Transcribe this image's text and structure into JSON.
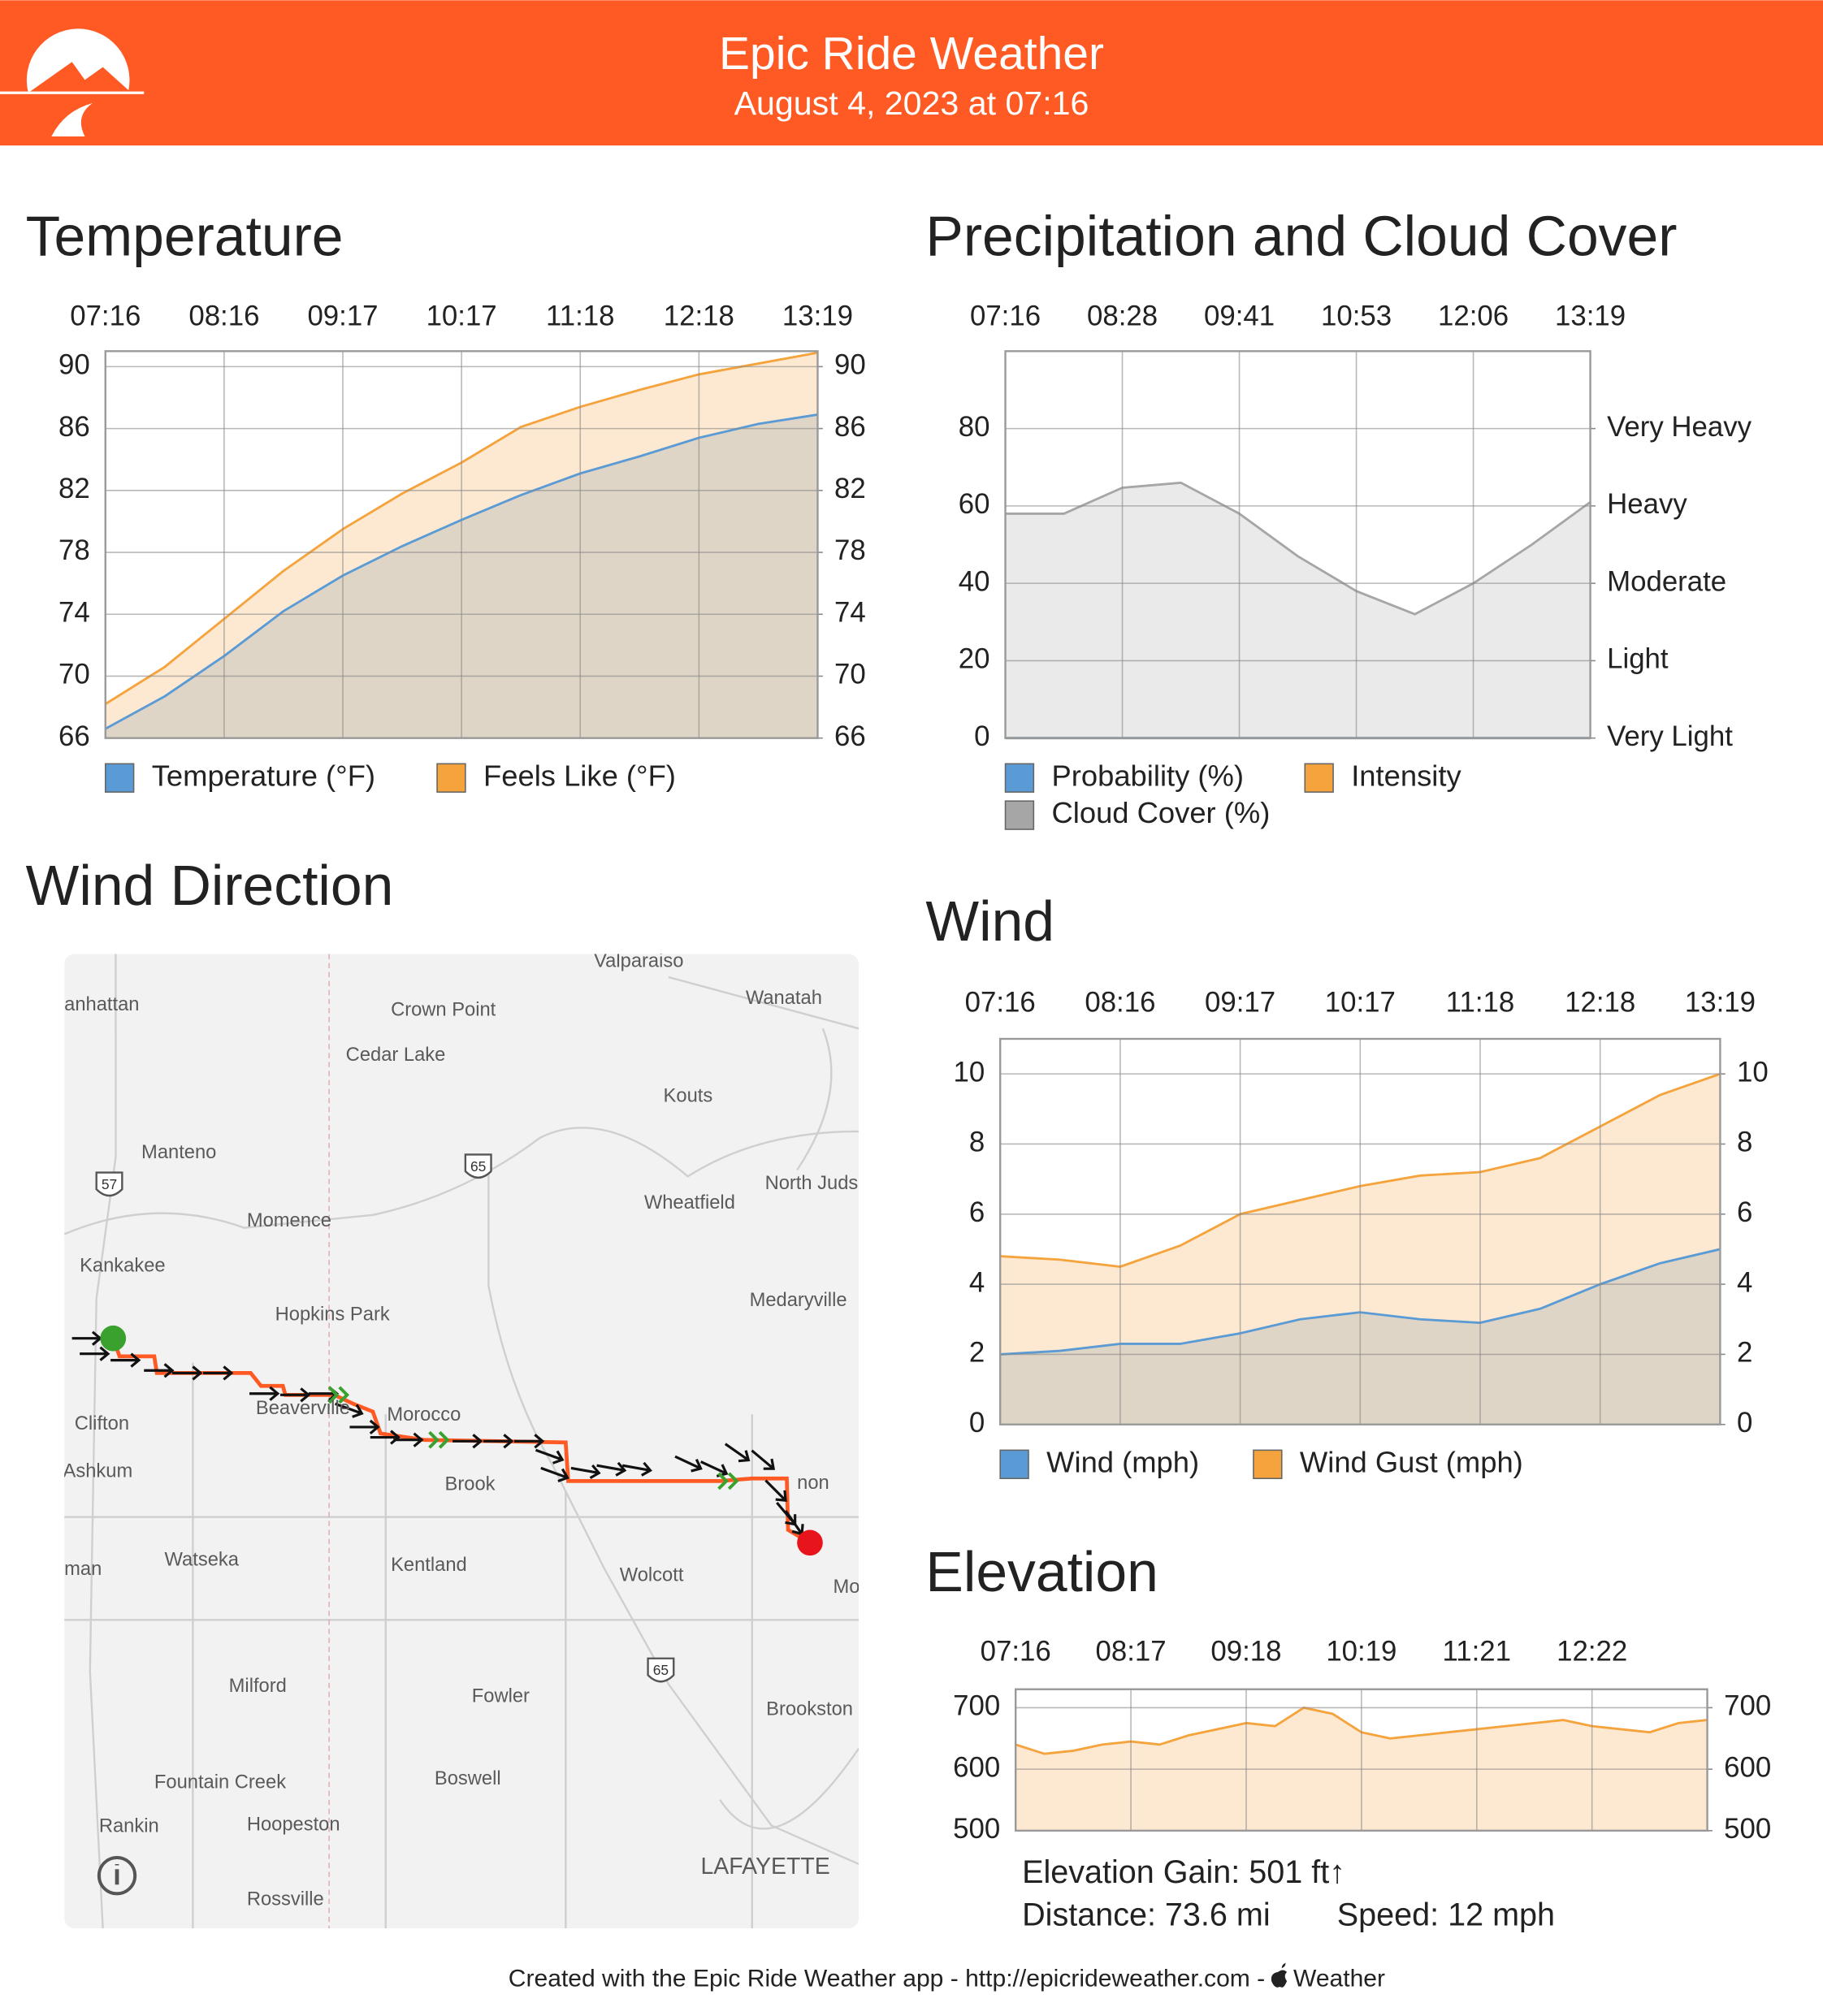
{
  "header": {
    "title": "Epic Ride Weather",
    "subtitle": "August 4, 2023 at 07:16"
  },
  "footer": {
    "text": "Created with the Epic Ride Weather app - http://epicrideweather.com -",
    "brand": "Weather"
  },
  "map": {
    "title": "Wind Direction",
    "labels": [
      "Valparaiso",
      "anhattan",
      "Crown Point",
      "Wanatah",
      "Cedar Lake",
      "Kouts",
      "Manteno",
      "North Juds",
      "Wheatfield",
      "Momence",
      "Kankakee",
      "Hopkins Park",
      "Medaryville",
      "Clifton",
      "Beaverville",
      "Morocco",
      "Ashkum",
      "Brook",
      "non",
      "Watseka",
      "man",
      "Kentland",
      "Wolcott",
      "Mo",
      "Milford",
      "Fowler",
      "Brookston",
      "Fountain Creek",
      "Boswell",
      "Rankin",
      "Hoopeston",
      "LAFAYETTE",
      "Rossville"
    ],
    "shields": [
      "57",
      "65",
      "65"
    ]
  },
  "elevation_stats": {
    "gain": "Elevation Gain: 501 ft↑",
    "distance": "Distance: 73.6 mi",
    "speed": "Speed: 12 mph"
  },
  "chart_data": [
    {
      "type": "area",
      "title": "Temperature",
      "categories": [
        "07:16",
        null,
        "08:16",
        null,
        "09:17",
        null,
        "10:17",
        null,
        "11:18",
        null,
        "12:18",
        null,
        "13:19"
      ],
      "series": [
        {
          "name": "Temperature (°F)",
          "color": "#5b9bd5",
          "fill": "#dcd3c4",
          "values": [
            66.6,
            68.7,
            71.3,
            74.2,
            76.5,
            78.4,
            80.1,
            81.7,
            83.1,
            84.2,
            85.4,
            86.3,
            86.9
          ]
        },
        {
          "name": "Feels Like (°F)",
          "color": "#f5a33c",
          "fill": "#fde7cc",
          "values": [
            68.2,
            70.6,
            73.7,
            76.8,
            79.5,
            81.8,
            83.8,
            86.1,
            87.4,
            88.5,
            89.5,
            90.2,
            90.9
          ]
        }
      ],
      "ylim": [
        66,
        91
      ],
      "yticks": [
        66,
        70,
        74,
        78,
        82,
        86,
        90
      ],
      "y2lim": [
        66,
        91
      ],
      "y2ticks": [
        66,
        70,
        74,
        78,
        82,
        86,
        90
      ],
      "grid": true
    },
    {
      "type": "area",
      "title": "Precipitation and Cloud Cover",
      "categories": [
        "07:16",
        null,
        "08:28",
        null,
        "09:41",
        null,
        "10:53",
        null,
        "12:06",
        null,
        "13:19"
      ],
      "series": [
        {
          "name": "Probability (%)",
          "color": "#5b9bd5",
          "fill": "#cfe0f1",
          "values": [
            0,
            0,
            0,
            0,
            0,
            0,
            0,
            0,
            0,
            0,
            0
          ]
        },
        {
          "name": "Intensity",
          "color": "#f5a33c",
          "fill": "#fde7cc",
          "values": [
            0,
            0,
            0,
            0,
            0,
            0,
            0,
            0,
            0,
            0,
            0
          ]
        },
        {
          "name": "Cloud Cover (%)",
          "color": "#a6a6a6",
          "fill": "#e8e8e8",
          "values": [
            58,
            58,
            64.7,
            66,
            58,
            47,
            38,
            32,
            40,
            50,
            61
          ]
        }
      ],
      "ylim": [
        0,
        100
      ],
      "yticks": [
        0,
        20,
        40,
        60,
        80
      ],
      "y2lim": [
        0,
        100
      ],
      "y2ticks": [
        {
          "value": 0,
          "label": "Very Light"
        },
        {
          "value": 20,
          "label": "Light"
        },
        {
          "value": 40,
          "label": "Moderate"
        },
        {
          "value": 60,
          "label": "Heavy"
        },
        {
          "value": 80,
          "label": "Very Heavy"
        }
      ],
      "grid": true
    },
    {
      "type": "area",
      "title": "Wind",
      "categories": [
        "07:16",
        null,
        "08:16",
        null,
        "09:17",
        null,
        "10:17",
        null,
        "11:18",
        null,
        "12:18",
        null,
        "13:19"
      ],
      "series": [
        {
          "name": "Wind (mph)",
          "color": "#5b9bd5",
          "fill": "#dcd3c4",
          "values": [
            2.0,
            2.1,
            2.3,
            2.3,
            2.6,
            3.0,
            3.2,
            3.0,
            2.9,
            3.3,
            4.0,
            4.6,
            5.0
          ]
        },
        {
          "name": "Wind Gust (mph)",
          "color": "#f5a33c",
          "fill": "#fde7cc",
          "values": [
            4.8,
            4.7,
            4.5,
            5.1,
            6.0,
            6.4,
            6.8,
            7.1,
            7.2,
            7.6,
            8.5,
            9.4,
            10.0
          ]
        }
      ],
      "ylim": [
        0,
        11
      ],
      "yticks": [
        0,
        2,
        4,
        6,
        8,
        10
      ],
      "y2lim": [
        0,
        11
      ],
      "y2ticks": [
        0,
        2,
        4,
        6,
        8,
        10
      ],
      "grid": true
    },
    {
      "type": "area",
      "title": "Elevation",
      "categories": [
        "07:16",
        null,
        null,
        null,
        "08:17",
        null,
        null,
        null,
        "09:18",
        null,
        null,
        null,
        "10:19",
        null,
        null,
        null,
        "11:21",
        null,
        null,
        null,
        "12:22",
        null,
        null,
        null,
        null
      ],
      "series": [
        {
          "name": "Elevation",
          "color": "#f5a33c",
          "fill": "#fde7cc",
          "values": [
            640,
            625,
            630,
            640,
            645,
            640,
            655,
            665,
            675,
            670,
            700,
            690,
            660,
            650,
            655,
            660,
            665,
            670,
            675,
            680,
            670,
            665,
            660,
            675,
            680
          ]
        }
      ],
      "legend": false,
      "ylim": [
        500,
        730
      ],
      "yticks": [
        500,
        600,
        700
      ],
      "y2lim": [
        500,
        730
      ],
      "y2ticks": [
        500,
        600,
        700
      ],
      "grid": true
    }
  ]
}
